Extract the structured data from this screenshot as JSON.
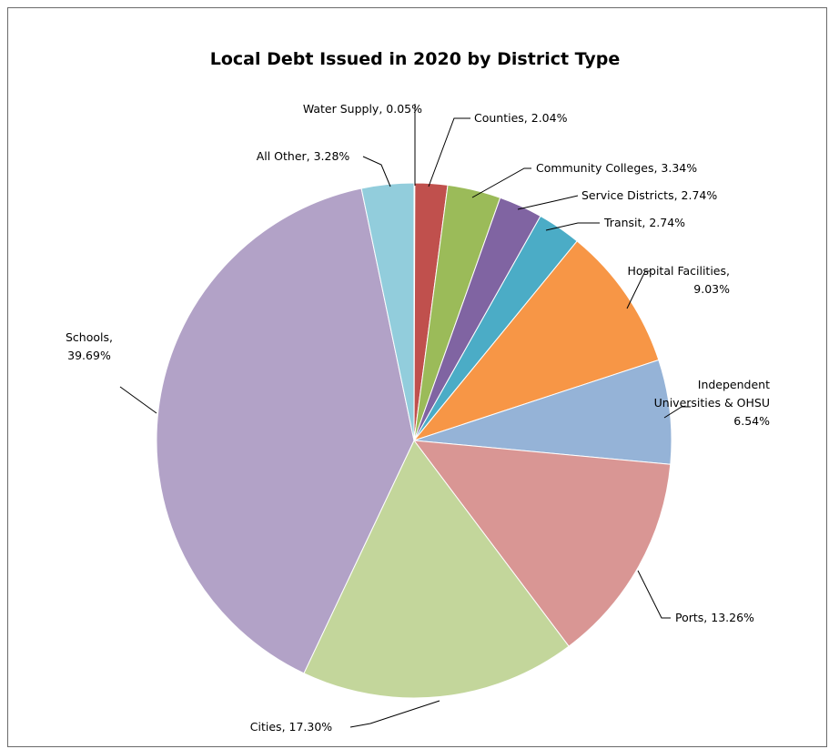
{
  "chart_data": {
    "type": "pie",
    "title": "Local Debt Issued in 2020 by District Type",
    "start_angle_deg": 0,
    "direction": "clockwise",
    "slices": [
      {
        "name": "Water Supply",
        "value": 0.05,
        "label": [
          "Water Supply, 0.05%"
        ],
        "color": "#4f81bd"
      },
      {
        "name": "Counties",
        "value": 2.04,
        "label": [
          "Counties, 2.04%"
        ],
        "color": "#c0504d"
      },
      {
        "name": "Community Colleges",
        "value": 3.34,
        "label": [
          "Community Colleges, 3.34%"
        ],
        "color": "#9bbb59"
      },
      {
        "name": "Service Districts",
        "value": 2.74,
        "label": [
          "Service Districts, 2.74%"
        ],
        "color": "#8064a2"
      },
      {
        "name": "Transit",
        "value": 2.74,
        "label": [
          "Transit, 2.74%"
        ],
        "color": "#4bacc6"
      },
      {
        "name": "Hospital Facilities",
        "value": 9.03,
        "label": [
          "Hospital Facilities,",
          "9.03%"
        ],
        "color": "#f79646"
      },
      {
        "name": "Independent Universities & OHSU",
        "value": 6.54,
        "label": [
          "Independent",
          "Universities & OHSU",
          "6.54%"
        ],
        "color": "#95b3d7"
      },
      {
        "name": "Ports",
        "value": 13.26,
        "label": [
          "Ports, 13.26%"
        ],
        "color": "#d99694"
      },
      {
        "name": "Cities",
        "value": 17.3,
        "label": [
          "Cities, 17.30%"
        ],
        "color": "#c3d69b"
      },
      {
        "name": "Schools",
        "value": 39.69,
        "label": [
          "Schools,",
          "39.69%"
        ],
        "color": "#b2a2c7"
      },
      {
        "name": "All Other",
        "value": 3.28,
        "label": [
          "All Other, 3.28%"
        ],
        "color": "#92cddc"
      }
    ]
  }
}
